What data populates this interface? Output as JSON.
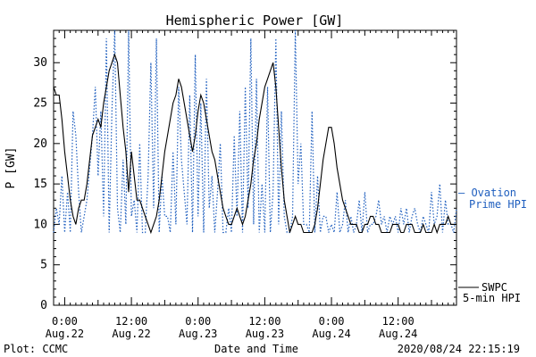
{
  "chart_data": {
    "type": "line",
    "title": "Hemispheric Power [GW]",
    "xlabel": "Date and Time",
    "ylabel": "P [GW]",
    "ylim": [
      0,
      34
    ],
    "xlim_hours": [
      -2,
      70.5
    ],
    "grid": false,
    "yticks": [
      0,
      5,
      10,
      15,
      20,
      25,
      30
    ],
    "xticks": [
      {
        "hour": 0,
        "line1": "0:00",
        "line2": "Aug.22"
      },
      {
        "hour": 12,
        "line1": "12:00",
        "line2": "Aug.22"
      },
      {
        "hour": 24,
        "line1": "0:00",
        "line2": "Aug.23"
      },
      {
        "hour": 36,
        "line1": "12:00",
        "line2": "Aug.23"
      },
      {
        "hour": 48,
        "line1": "0:00",
        "line2": "Aug.24"
      },
      {
        "hour": 60,
        "line1": "12:00",
        "line2": "Aug.24"
      }
    ],
    "series": [
      {
        "name": "Ovation Prime HPI",
        "color": "#1f5fbf",
        "style": "dotted",
        "legend_lines": [
          "— Ovation",
          "Prime HPI"
        ],
        "x": [
          -2.0,
          -1.5,
          -1.0,
          -0.5,
          0.0,
          0.5,
          1.0,
          1.5,
          2.0,
          2.5,
          3.0,
          3.5,
          4.0,
          4.5,
          5.0,
          5.5,
          6.0,
          6.5,
          7.0,
          7.5,
          8.0,
          8.5,
          9.0,
          9.5,
          10.0,
          10.5,
          11.0,
          11.5,
          12.0,
          12.5,
          13.0,
          13.5,
          14.0,
          14.5,
          15.0,
          15.5,
          16.0,
          16.5,
          17.0,
          17.5,
          18.0,
          18.5,
          19.0,
          19.5,
          20.0,
          20.5,
          21.0,
          21.5,
          22.0,
          22.5,
          23.0,
          23.5,
          24.0,
          24.5,
          25.0,
          25.5,
          26.0,
          26.5,
          27.0,
          27.5,
          28.0,
          28.5,
          29.0,
          29.5,
          30.0,
          30.5,
          31.0,
          31.5,
          32.0,
          32.5,
          33.0,
          33.5,
          34.0,
          34.5,
          35.0,
          35.5,
          36.0,
          36.5,
          37.0,
          37.5,
          38.0,
          38.5,
          39.0,
          39.5,
          40.0,
          40.5,
          41.0,
          41.5,
          42.0,
          42.5,
          43.0,
          43.5,
          44.0,
          44.5,
          45.0,
          45.5,
          46.0,
          46.5,
          47.0,
          47.5,
          48.0,
          48.5,
          49.0,
          49.5,
          50.0,
          50.5,
          51.0,
          51.5,
          52.0,
          52.5,
          53.0,
          53.5,
          54.0,
          54.5,
          55.0,
          55.5,
          56.0,
          56.5,
          57.0,
          57.5,
          58.0,
          58.5,
          59.0,
          59.5,
          60.0,
          60.5,
          61.0,
          61.5,
          62.0,
          62.5,
          63.0,
          63.5,
          64.0,
          64.5,
          65.0,
          65.5,
          66.0,
          66.5,
          67.0,
          67.5,
          68.0,
          68.5,
          69.0,
          69.5,
          70.0,
          70.5
        ],
        "y": [
          9,
          12,
          10,
          16,
          9,
          14,
          9,
          24,
          21,
          14,
          9,
          11,
          13,
          17,
          21,
          27,
          16,
          24,
          11,
          33,
          9,
          24,
          34,
          12,
          9,
          18,
          10,
          34,
          11,
          13,
          9,
          20,
          9,
          9,
          16,
          30,
          12,
          33,
          9,
          16,
          11,
          11,
          9,
          19,
          10,
          27,
          18,
          14,
          10,
          26,
          9,
          31,
          11,
          25,
          9,
          28,
          12,
          16,
          9,
          14,
          20,
          9,
          9,
          12,
          9,
          21,
          11,
          24,
          9,
          27,
          12,
          33,
          10,
          28,
          9,
          15,
          9,
          27,
          9,
          14,
          33,
          10,
          24,
          11,
          9,
          9,
          11,
          34,
          15,
          20,
          10,
          10,
          9,
          24,
          9,
          16,
          9,
          11,
          11,
          9,
          10,
          9,
          14,
          9,
          10,
          13,
          9,
          11,
          9,
          10,
          13,
          9,
          14,
          9,
          10,
          10,
          11,
          13,
          10,
          11,
          9,
          11,
          10,
          11,
          9,
          12,
          10,
          12,
          9,
          11,
          12,
          10,
          9,
          11,
          10,
          9,
          14,
          10,
          11,
          15,
          9,
          13,
          10,
          10,
          9,
          12
        ]
      },
      {
        "name": "SWPC 5-min HPI",
        "color": "#000000",
        "style": "solid",
        "legend_lines": [
          "SWPC",
          "5-min HPI"
        ],
        "x": [
          -2.0,
          -1.5,
          -1.0,
          -0.5,
          0.0,
          0.5,
          1.0,
          1.5,
          2.0,
          2.5,
          3.0,
          3.5,
          4.0,
          4.5,
          5.0,
          5.5,
          6.0,
          6.5,
          7.0,
          7.5,
          8.0,
          8.5,
          9.0,
          9.5,
          10.0,
          10.5,
          11.0,
          11.5,
          12.0,
          12.5,
          13.0,
          13.5,
          14.0,
          14.5,
          15.0,
          15.5,
          16.0,
          16.5,
          17.0,
          17.5,
          18.0,
          18.5,
          19.0,
          19.5,
          20.0,
          20.5,
          21.0,
          21.5,
          22.0,
          22.5,
          23.0,
          23.5,
          24.0,
          24.5,
          25.0,
          25.5,
          26.0,
          26.5,
          27.0,
          27.5,
          28.0,
          28.5,
          29.0,
          29.5,
          30.0,
          30.5,
          31.0,
          31.5,
          32.0,
          32.5,
          33.0,
          33.5,
          34.0,
          34.5,
          35.0,
          35.5,
          36.0,
          36.5,
          37.0,
          37.5,
          38.0,
          38.5,
          39.0,
          39.5,
          40.0,
          40.5,
          41.0,
          41.5,
          42.0,
          42.5,
          43.0,
          43.5,
          44.0,
          44.5,
          45.0,
          45.5,
          46.0,
          46.5,
          47.0,
          47.5,
          48.0,
          48.5,
          49.0,
          49.5,
          50.0,
          50.5,
          51.0,
          51.5,
          52.0,
          52.5,
          53.0,
          53.5,
          54.0,
          54.5,
          55.0,
          55.5,
          56.0,
          56.5,
          57.0,
          57.5,
          58.0,
          58.5,
          59.0,
          59.5,
          60.0,
          60.5,
          61.0,
          61.5,
          62.0,
          62.5,
          63.0,
          63.5,
          64.0,
          64.5,
          65.0,
          65.5,
          66.0,
          66.5,
          67.0,
          67.5,
          68.0,
          68.5,
          69.0,
          69.5,
          70.0,
          70.5
        ],
        "y": [
          27,
          26,
          26,
          23,
          19,
          16,
          13,
          11,
          10,
          12,
          13,
          13,
          15,
          18,
          21,
          22,
          23,
          22,
          25,
          27,
          29,
          30,
          31,
          30,
          26,
          22,
          19,
          14,
          19,
          16,
          13,
          13,
          12,
          11,
          10,
          9,
          10,
          11,
          13,
          16,
          19,
          21,
          23,
          25,
          26,
          28,
          27,
          25,
          23,
          21,
          19,
          21,
          24,
          26,
          25,
          23,
          21,
          19,
          18,
          16,
          14,
          12,
          11,
          10,
          10,
          11,
          12,
          11,
          10,
          11,
          13,
          15,
          18,
          20,
          23,
          25,
          27,
          28,
          29,
          30,
          27,
          22,
          17,
          13,
          11,
          9,
          10,
          11,
          10,
          10,
          9,
          9,
          9,
          9,
          10,
          12,
          15,
          18,
          20,
          22,
          22,
          20,
          17,
          15,
          13,
          12,
          11,
          10,
          10,
          10,
          9,
          9,
          10,
          10,
          11,
          11,
          10,
          10,
          9,
          9,
          9,
          9,
          10,
          10,
          10,
          9,
          9,
          10,
          10,
          10,
          9,
          9,
          9,
          10,
          9,
          9,
          9,
          10,
          9,
          10,
          10,
          10,
          11,
          10,
          10,
          10
        ]
      }
    ]
  },
  "footer": {
    "left": "Plot: CCMC",
    "center": "Date and Time",
    "right": "2020/08/24 22:15:19"
  }
}
